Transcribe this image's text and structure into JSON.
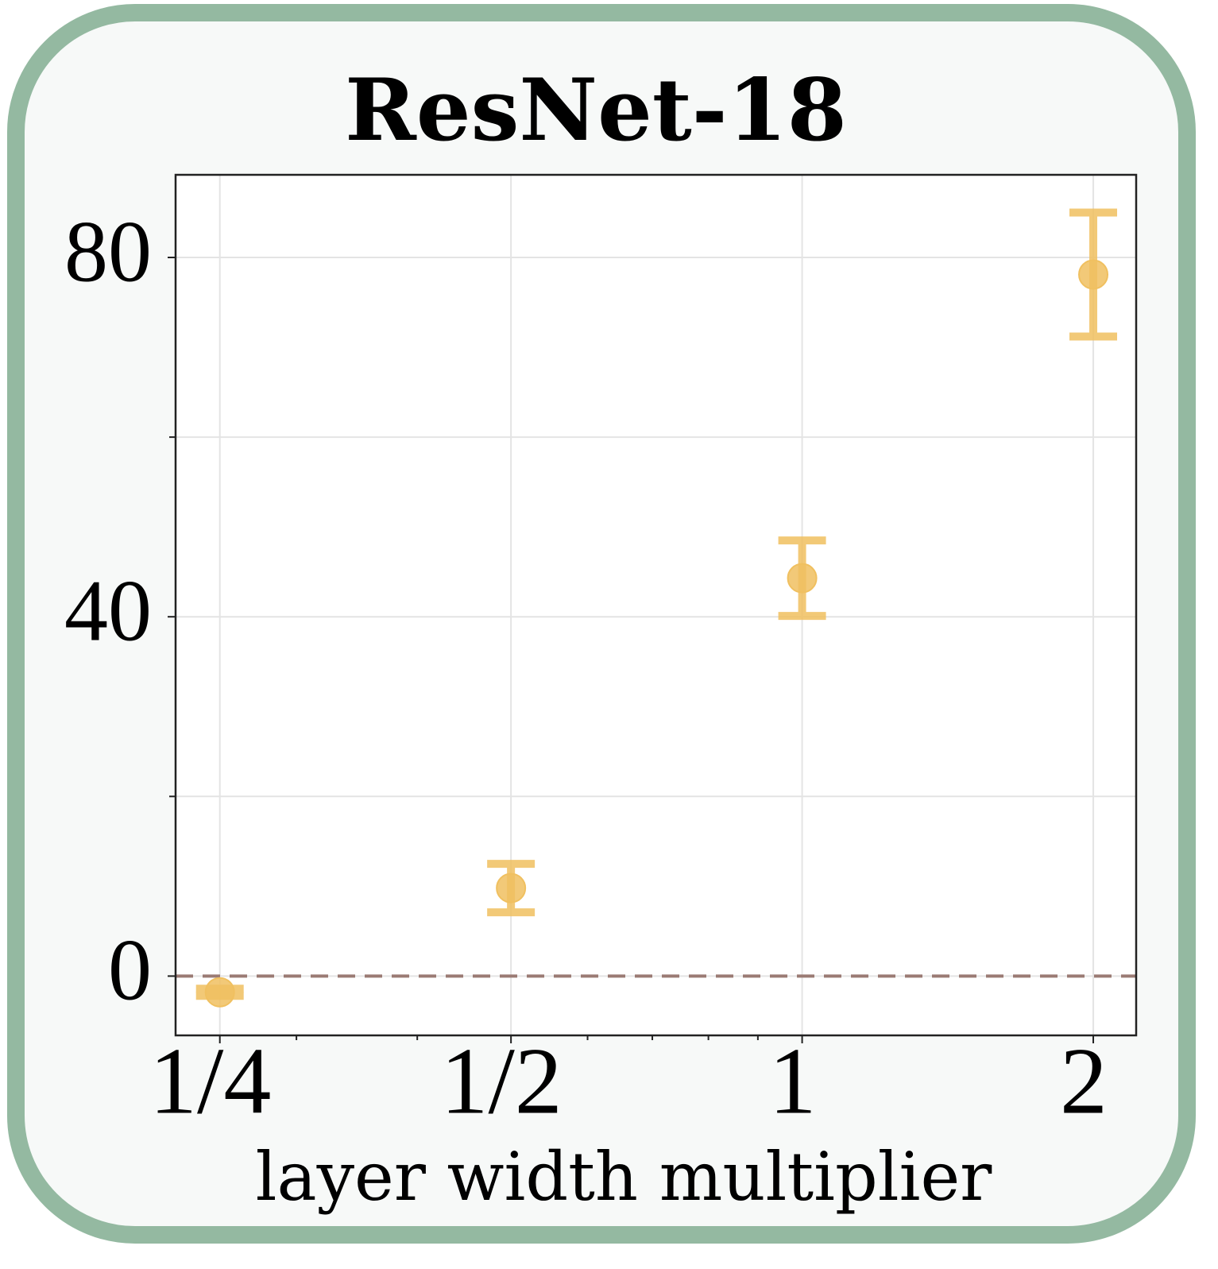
{
  "chart_data": {
    "type": "errorbar",
    "title": "ResNet-18",
    "x_label": "layer width multiplier",
    "x": [
      0.25,
      0.5,
      1,
      2
    ],
    "xscale": "log2",
    "xlim": [
      0.225,
      2.215
    ],
    "xticks": [
      {
        "value": 0.25,
        "label": "1/4"
      },
      {
        "value": 0.5,
        "label": "1/2"
      },
      1,
      2
    ],
    "xminor_ticks": [
      0.3,
      0.4,
      0.6,
      0.7,
      0.8,
      0.9
    ],
    "ylim": [
      -6.6,
      89.2
    ],
    "yticks": [
      0,
      40,
      80
    ],
    "yminor_ticks": [
      20,
      60
    ],
    "grid": true,
    "series": [
      {
        "color": "#f0c060",
        "values": [
          -1.8,
          9.8,
          44.3,
          78.1
        ],
        "errors": [
          0.4,
          2.7,
          4.2,
          6.9
        ]
      }
    ],
    "reference_line": {
      "y": 0,
      "color": "#9b7b74"
    }
  }
}
